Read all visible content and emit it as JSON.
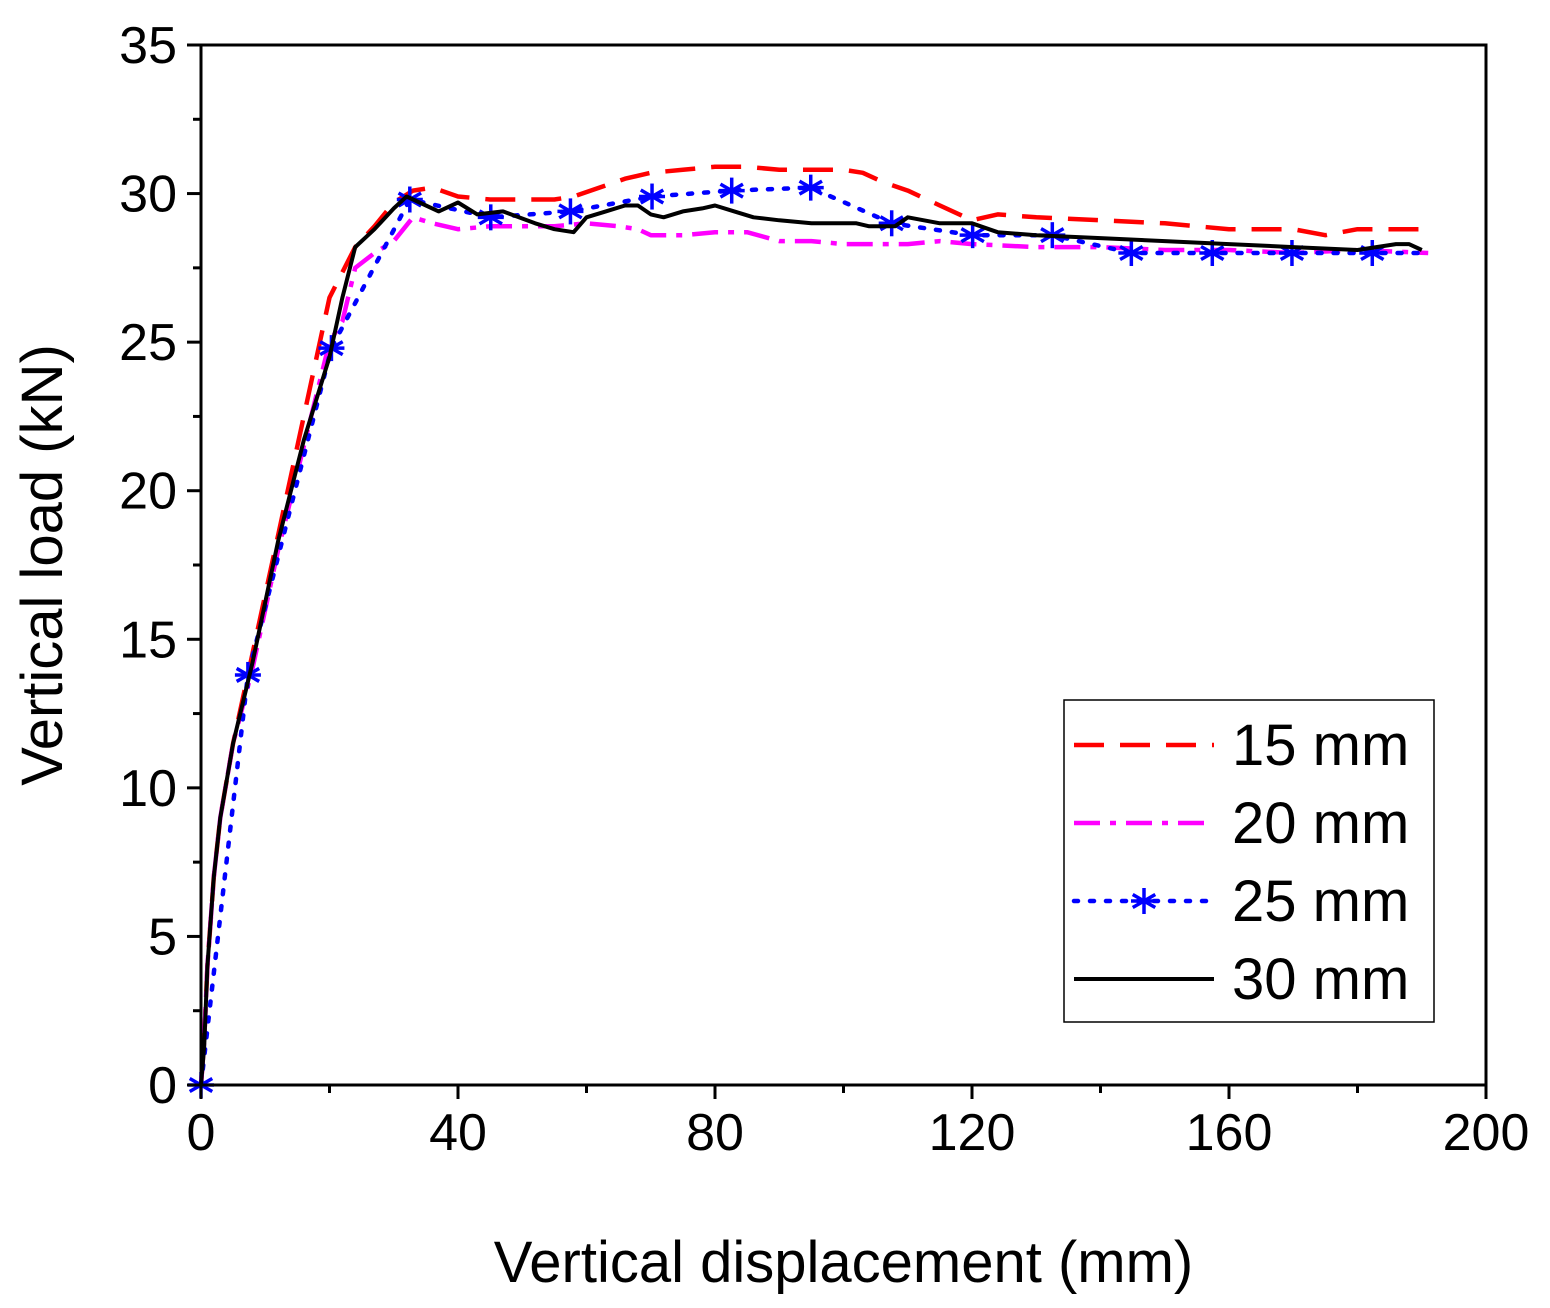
{
  "chart_data": {
    "type": "line",
    "xlabel": "Vertical displacement (mm)",
    "ylabel": "Vertical load (kN)",
    "xlim": [
      0,
      200
    ],
    "ylim": [
      0,
      35
    ],
    "xticks": [
      0,
      40,
      80,
      120,
      160,
      200
    ],
    "yticks": [
      0,
      5,
      10,
      15,
      20,
      25,
      30,
      35
    ],
    "xtick_labels": [
      "0",
      "40",
      "80",
      "120",
      "160",
      "200"
    ],
    "ytick_labels": [
      "0",
      "5",
      "10",
      "15",
      "20",
      "25",
      "30",
      "35"
    ],
    "grid": false,
    "legend_position": "bottom-right",
    "series": [
      {
        "name": "15 mm",
        "color": "#ff0000",
        "style": "dashed",
        "x": [
          0,
          0.5,
          1,
          2,
          3,
          5,
          8,
          12,
          16,
          20,
          24,
          27,
          30,
          33,
          36,
          40,
          45,
          50,
          55,
          58,
          62,
          66,
          70,
          75,
          80,
          85,
          90,
          95,
          100,
          103,
          106,
          110,
          115,
          120,
          124,
          130,
          140,
          150,
          160,
          165,
          170,
          175,
          180,
          185,
          191
        ],
        "y": [
          0,
          1.5,
          4,
          7,
          9,
          11.5,
          14.5,
          18.5,
          22.5,
          26.5,
          28.2,
          28.9,
          29.7,
          30.1,
          30.2,
          29.9,
          29.8,
          29.8,
          29.8,
          29.9,
          30.2,
          30.5,
          30.7,
          30.8,
          30.9,
          30.9,
          30.8,
          30.8,
          30.8,
          30.7,
          30.4,
          30.1,
          29.6,
          29.1,
          29.3,
          29.2,
          29.1,
          29.0,
          28.8,
          28.8,
          28.8,
          28.6,
          28.8,
          28.8,
          28.8
        ]
      },
      {
        "name": "20 mm",
        "color": "#ff00ff",
        "style": "dashdot",
        "x": [
          0,
          0.5,
          1,
          2,
          3,
          5,
          8,
          12,
          16,
          20,
          22,
          24,
          27,
          30,
          33,
          36,
          40,
          45,
          50,
          55,
          60,
          65,
          68,
          70,
          75,
          80,
          85,
          90,
          95,
          100,
          105,
          110,
          115,
          120,
          130,
          140,
          150,
          160,
          170,
          180,
          191
        ],
        "y": [
          0,
          1.5,
          4,
          7,
          9,
          11.5,
          14,
          18,
          21.5,
          25.0,
          25.7,
          27.5,
          28.0,
          28.4,
          29.2,
          29.0,
          28.8,
          28.9,
          28.9,
          28.9,
          29.0,
          28.9,
          28.8,
          28.6,
          28.6,
          28.7,
          28.7,
          28.4,
          28.4,
          28.3,
          28.3,
          28.3,
          28.4,
          28.3,
          28.2,
          28.2,
          28.1,
          28.1,
          28.0,
          28.1,
          28.0
        ]
      },
      {
        "name": "25 mm",
        "color": "#0000ff",
        "style": "dotted",
        "marker": "asterisk",
        "x": [
          0,
          7.3,
          20.3,
          32.5,
          45.1,
          57.5,
          70.2,
          82.6,
          94.9,
          107.5,
          120.1,
          132.5,
          144.8,
          157.4,
          169.8,
          182.3,
          190
        ],
        "y": [
          0,
          13.8,
          24.8,
          29.8,
          29.2,
          29.4,
          29.9,
          30.1,
          30.2,
          29.0,
          28.6,
          28.6,
          28.0,
          28.0,
          28.0,
          28.0,
          28.0
        ]
      },
      {
        "name": "30 mm",
        "color": "#000000",
        "style": "solid",
        "x": [
          0,
          0.5,
          1,
          2,
          3,
          5,
          8,
          12,
          16,
          20,
          22,
          24,
          27,
          30,
          32,
          34,
          37,
          40,
          43,
          47,
          52,
          55,
          58,
          60,
          63,
          66,
          68,
          70,
          72,
          75,
          78,
          80,
          83,
          86,
          90,
          95,
          100,
          102,
          104,
          108,
          110,
          115,
          120,
          124,
          130,
          140,
          150,
          160,
          170,
          180,
          186,
          188,
          190
        ],
        "y": [
          0,
          1.3,
          4,
          7,
          9,
          11.5,
          14.2,
          18.3,
          21.7,
          24.5,
          26.5,
          28.2,
          28.8,
          29.5,
          29.9,
          29.7,
          29.4,
          29.7,
          29.3,
          29.4,
          29.0,
          28.8,
          28.7,
          29.2,
          29.4,
          29.6,
          29.6,
          29.3,
          29.2,
          29.4,
          29.5,
          29.6,
          29.4,
          29.2,
          29.1,
          29.0,
          29.0,
          29.0,
          28.9,
          28.9,
          29.2,
          29.0,
          29.0,
          28.7,
          28.6,
          28.5,
          28.4,
          28.3,
          28.2,
          28.1,
          28.3,
          28.3,
          28.1
        ]
      }
    ]
  }
}
